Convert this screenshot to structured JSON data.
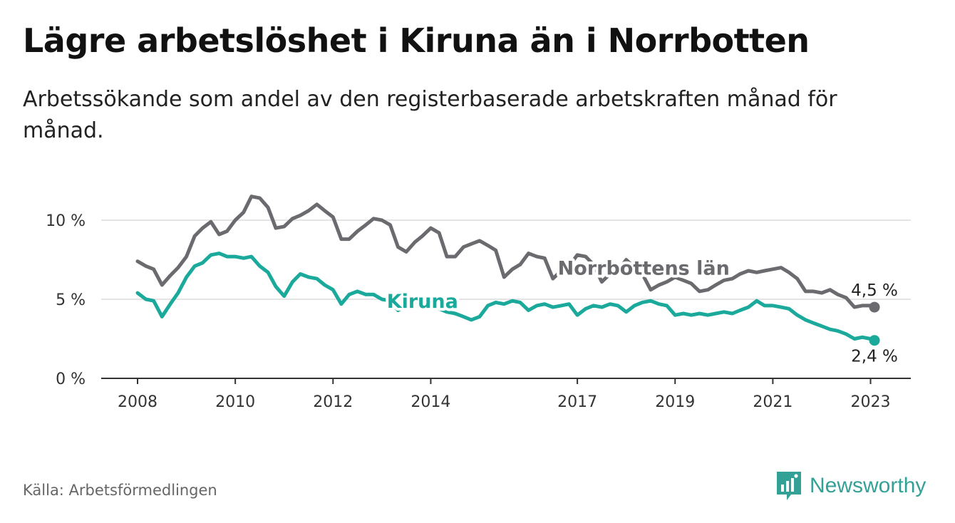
{
  "title": "Lägre arbetslöshet i Kiruna än i Norrbotten",
  "subtitle": "Arbetssökande som andel av den registerbaserade arbetskraften månad för månad.",
  "source": "Källa: Arbetsförmedlingen",
  "brand": {
    "name": "Newsworthy",
    "color": "#34a197"
  },
  "chart_data": {
    "type": "line",
    "title": "Lägre arbetslöshet i Kiruna än i Norrbotten",
    "xlabel": "",
    "ylabel": "",
    "x_range": [
      2008.0,
      2023.08
    ],
    "ylim": [
      0,
      10
    ],
    "y_ticks": [
      {
        "value": 0,
        "label": "0 %"
      },
      {
        "value": 5,
        "label": "5 %"
      },
      {
        "value": 10,
        "label": "10 %"
      }
    ],
    "x_ticks": [
      {
        "value": 2008,
        "label": "2008"
      },
      {
        "value": 2010,
        "label": "2010"
      },
      {
        "value": 2012,
        "label": "2012"
      },
      {
        "value": 2014,
        "label": "2014"
      },
      {
        "value": 2017,
        "label": "2017"
      },
      {
        "value": 2019,
        "label": "2019"
      },
      {
        "value": 2021,
        "label": "2021"
      },
      {
        "value": 2023,
        "label": "2023"
      }
    ],
    "grid": true,
    "series": [
      {
        "name": "Norrbottens län",
        "color": "#6b6a6f",
        "label_pos": [
          2016.6,
          7.0
        ],
        "end_label": "4,5 %",
        "points": [
          [
            2008.0,
            7.4
          ],
          [
            2008.17,
            7.1
          ],
          [
            2008.33,
            6.9
          ],
          [
            2008.5,
            5.9
          ],
          [
            2008.67,
            6.5
          ],
          [
            2008.83,
            7.0
          ],
          [
            2009.0,
            7.7
          ],
          [
            2009.17,
            9.0
          ],
          [
            2009.33,
            9.5
          ],
          [
            2009.5,
            9.9
          ],
          [
            2009.67,
            9.1
          ],
          [
            2009.83,
            9.3
          ],
          [
            2010.0,
            10.0
          ],
          [
            2010.17,
            10.5
          ],
          [
            2010.33,
            11.5
          ],
          [
            2010.5,
            11.4
          ],
          [
            2010.67,
            10.8
          ],
          [
            2010.83,
            9.5
          ],
          [
            2011.0,
            9.6
          ],
          [
            2011.17,
            10.1
          ],
          [
            2011.33,
            10.3
          ],
          [
            2011.5,
            10.6
          ],
          [
            2011.67,
            11.0
          ],
          [
            2011.83,
            10.6
          ],
          [
            2012.0,
            10.2
          ],
          [
            2012.17,
            8.8
          ],
          [
            2012.33,
            8.8
          ],
          [
            2012.5,
            9.3
          ],
          [
            2012.67,
            9.7
          ],
          [
            2012.83,
            10.1
          ],
          [
            2013.0,
            10.0
          ],
          [
            2013.17,
            9.7
          ],
          [
            2013.33,
            8.3
          ],
          [
            2013.5,
            8.0
          ],
          [
            2013.67,
            8.6
          ],
          [
            2013.83,
            9.0
          ],
          [
            2014.0,
            9.5
          ],
          [
            2014.17,
            9.2
          ],
          [
            2014.33,
            7.7
          ],
          [
            2014.5,
            7.7
          ],
          [
            2014.67,
            8.3
          ],
          [
            2014.83,
            8.5
          ],
          [
            2015.0,
            8.7
          ],
          [
            2015.17,
            8.4
          ],
          [
            2015.33,
            8.1
          ],
          [
            2015.5,
            6.4
          ],
          [
            2015.67,
            6.9
          ],
          [
            2015.83,
            7.2
          ],
          [
            2016.0,
            7.9
          ],
          [
            2016.17,
            7.7
          ],
          [
            2016.33,
            7.6
          ],
          [
            2016.5,
            6.3
          ],
          [
            2016.67,
            6.8
          ],
          [
            2016.83,
            7.1
          ],
          [
            2017.0,
            7.8
          ],
          [
            2017.17,
            7.7
          ],
          [
            2017.33,
            7.2
          ],
          [
            2017.5,
            6.1
          ],
          [
            2017.67,
            6.6
          ],
          [
            2017.83,
            6.8
          ],
          [
            2018.0,
            7.5
          ],
          [
            2018.17,
            7.0
          ],
          [
            2018.33,
            6.6
          ],
          [
            2018.5,
            5.6
          ],
          [
            2018.67,
            5.9
          ],
          [
            2018.83,
            6.1
          ],
          [
            2019.0,
            6.4
          ],
          [
            2019.17,
            6.2
          ],
          [
            2019.33,
            6.0
          ],
          [
            2019.5,
            5.5
          ],
          [
            2019.67,
            5.6
          ],
          [
            2019.83,
            5.9
          ],
          [
            2020.0,
            6.2
          ],
          [
            2020.17,
            6.3
          ],
          [
            2020.33,
            6.6
          ],
          [
            2020.5,
            6.8
          ],
          [
            2020.67,
            6.7
          ],
          [
            2020.83,
            6.8
          ],
          [
            2021.0,
            6.9
          ],
          [
            2021.17,
            7.0
          ],
          [
            2021.33,
            6.7
          ],
          [
            2021.5,
            6.3
          ],
          [
            2021.67,
            5.5
          ],
          [
            2021.83,
            5.5
          ],
          [
            2022.0,
            5.4
          ],
          [
            2022.17,
            5.6
          ],
          [
            2022.33,
            5.3
          ],
          [
            2022.5,
            5.1
          ],
          [
            2022.67,
            4.5
          ],
          [
            2022.83,
            4.6
          ],
          [
            2023.0,
            4.6
          ],
          [
            2023.08,
            4.5
          ]
        ]
      },
      {
        "name": "Kiruna",
        "color": "#1aa99b",
        "label_pos": [
          2013.1,
          4.9
        ],
        "end_label": "2,4 %",
        "points": [
          [
            2008.0,
            5.4
          ],
          [
            2008.17,
            5.0
          ],
          [
            2008.33,
            4.9
          ],
          [
            2008.5,
            3.9
          ],
          [
            2008.67,
            4.7
          ],
          [
            2008.83,
            5.4
          ],
          [
            2009.0,
            6.4
          ],
          [
            2009.17,
            7.1
          ],
          [
            2009.33,
            7.3
          ],
          [
            2009.5,
            7.8
          ],
          [
            2009.67,
            7.9
          ],
          [
            2009.83,
            7.7
          ],
          [
            2010.0,
            7.7
          ],
          [
            2010.17,
            7.6
          ],
          [
            2010.33,
            7.7
          ],
          [
            2010.5,
            7.1
          ],
          [
            2010.67,
            6.7
          ],
          [
            2010.83,
            5.8
          ],
          [
            2011.0,
            5.2
          ],
          [
            2011.17,
            6.1
          ],
          [
            2011.33,
            6.6
          ],
          [
            2011.5,
            6.4
          ],
          [
            2011.67,
            6.3
          ],
          [
            2011.83,
            5.9
          ],
          [
            2012.0,
            5.6
          ],
          [
            2012.17,
            4.7
          ],
          [
            2012.33,
            5.3
          ],
          [
            2012.5,
            5.5
          ],
          [
            2012.67,
            5.3
          ],
          [
            2012.83,
            5.3
          ],
          [
            2013.0,
            5.0
          ],
          [
            2013.17,
            4.9
          ],
          [
            2013.33,
            4.3
          ],
          [
            2013.5,
            4.6
          ],
          [
            2013.67,
            4.8
          ],
          [
            2013.83,
            5.0
          ],
          [
            2014.0,
            4.6
          ],
          [
            2014.17,
            4.4
          ],
          [
            2014.33,
            4.2
          ],
          [
            2014.5,
            4.1
          ],
          [
            2014.67,
            3.9
          ],
          [
            2014.83,
            3.7
          ],
          [
            2015.0,
            3.9
          ],
          [
            2015.17,
            4.6
          ],
          [
            2015.33,
            4.8
          ],
          [
            2015.5,
            4.7
          ],
          [
            2015.67,
            4.9
          ],
          [
            2015.83,
            4.8
          ],
          [
            2016.0,
            4.3
          ],
          [
            2016.17,
            4.6
          ],
          [
            2016.33,
            4.7
          ],
          [
            2016.5,
            4.5
          ],
          [
            2016.67,
            4.6
          ],
          [
            2016.83,
            4.7
          ],
          [
            2017.0,
            4.0
          ],
          [
            2017.17,
            4.4
          ],
          [
            2017.33,
            4.6
          ],
          [
            2017.5,
            4.5
          ],
          [
            2017.67,
            4.7
          ],
          [
            2017.83,
            4.6
          ],
          [
            2018.0,
            4.2
          ],
          [
            2018.17,
            4.6
          ],
          [
            2018.33,
            4.8
          ],
          [
            2018.5,
            4.9
          ],
          [
            2018.67,
            4.7
          ],
          [
            2018.83,
            4.6
          ],
          [
            2019.0,
            4.0
          ],
          [
            2019.17,
            4.1
          ],
          [
            2019.33,
            4.0
          ],
          [
            2019.5,
            4.1
          ],
          [
            2019.67,
            4.0
          ],
          [
            2019.83,
            4.1
          ],
          [
            2020.0,
            4.2
          ],
          [
            2020.17,
            4.1
          ],
          [
            2020.33,
            4.3
          ],
          [
            2020.5,
            4.5
          ],
          [
            2020.67,
            4.9
          ],
          [
            2020.83,
            4.6
          ],
          [
            2021.0,
            4.6
          ],
          [
            2021.17,
            4.5
          ],
          [
            2021.33,
            4.4
          ],
          [
            2021.5,
            4.0
          ],
          [
            2021.67,
            3.7
          ],
          [
            2021.83,
            3.5
          ],
          [
            2022.0,
            3.3
          ],
          [
            2022.17,
            3.1
          ],
          [
            2022.33,
            3.0
          ],
          [
            2022.5,
            2.8
          ],
          [
            2022.67,
            2.5
          ],
          [
            2022.83,
            2.6
          ],
          [
            2023.0,
            2.5
          ],
          [
            2023.08,
            2.4
          ]
        ]
      }
    ]
  }
}
